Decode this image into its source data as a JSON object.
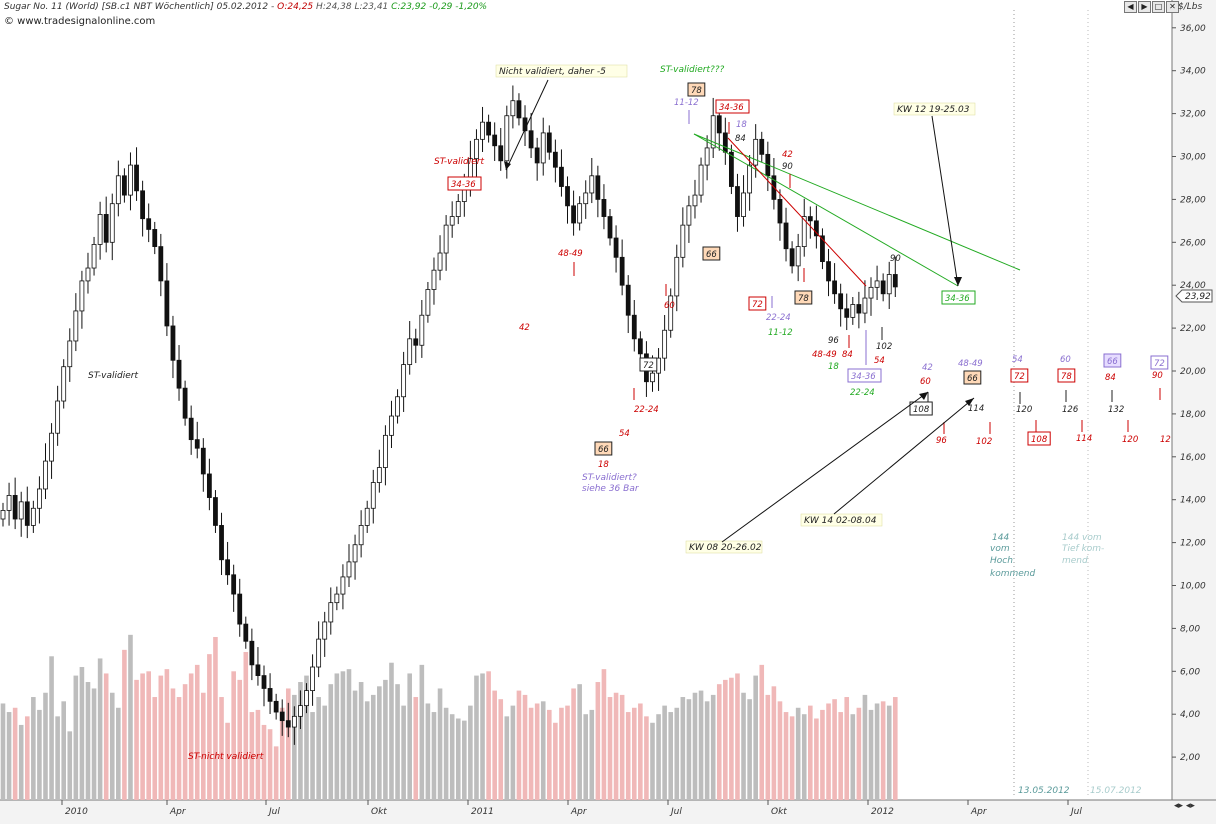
{
  "header": {
    "title": "Sugar No. 11 (World) [SB.c1 NBT Wöchentlich] 05.02.2012 -",
    "open": "O:24,25",
    "high_low": "H:24,38 L:23,41",
    "close": "C:23,92 -0,29 -1,20%",
    "website": "© www.tradesignalonline.com",
    "unit": "$/Lbs",
    "window_buttons": [
      "◀",
      "▶",
      "□",
      "✕"
    ],
    "scroll_buttons": "◂▸ ◂▸"
  },
  "colors": {
    "up_volume": "#bdbdbd",
    "down_volume": "#f0b8b8",
    "background": "#ffffff",
    "axis_panel": "#f3f3f3",
    "red_label": "#cc0000",
    "purple_label": "#8a6fd0",
    "green_label": "#22aa22",
    "accent_box": "#ffd9b8"
  },
  "chart_data": {
    "type": "candlestick",
    "title": "Sugar No. 11 (World) [SB.c1 NBT Wöchentlich]",
    "ylabel": "$/Lbs",
    "ylim": [
      0,
      37
    ],
    "y_ticks": [
      "2,00",
      "4,00",
      "6,00",
      "8,00",
      "10,00",
      "12,00",
      "14,00",
      "16,00",
      "18,00",
      "20,00",
      "22,00",
      "24,00",
      "26,00",
      "28,00",
      "30,00",
      "32,00",
      "34,00",
      "36,00"
    ],
    "x_ticks": [
      "2010",
      "Apr",
      "Jul",
      "Okt",
      "2011",
      "Apr",
      "Jul",
      "Okt",
      "2012",
      "Apr",
      "Jul"
    ],
    "last_price_label": "23,92",
    "closes": [
      13.5,
      14.2,
      13.1,
      13.9,
      12.8,
      13.6,
      14.5,
      15.8,
      17.1,
      18.6,
      20.2,
      21.4,
      22.8,
      24.2,
      24.8,
      25.9,
      27.3,
      26.0,
      27.8,
      29.1,
      28.2,
      29.6,
      28.4,
      27.1,
      26.6,
      25.8,
      24.2,
      22.1,
      20.5,
      19.2,
      17.8,
      16.8,
      16.4,
      15.2,
      14.1,
      12.8,
      11.2,
      10.5,
      9.6,
      8.2,
      7.4,
      6.3,
      5.8,
      5.2,
      4.6,
      4.1,
      3.7,
      3.4,
      3.9,
      4.4,
      5.1,
      6.2,
      7.5,
      8.3,
      9.2,
      9.6,
      10.4,
      11.1,
      11.9,
      12.8,
      13.6,
      14.8,
      15.5,
      17.0,
      17.9,
      18.8,
      20.3,
      21.5,
      21.2,
      22.6,
      23.8,
      24.7,
      25.5,
      26.8,
      27.2,
      27.9,
      28.6,
      29.9,
      30.8,
      31.6,
      31.0,
      30.5,
      29.8,
      31.9,
      32.6,
      31.8,
      31.2,
      30.4,
      29.7,
      31.1,
      30.2,
      29.5,
      28.6,
      27.7,
      26.9,
      27.8,
      28.3,
      29.1,
      28.0,
      27.2,
      26.2,
      25.3,
      24.0,
      22.6,
      21.5,
      20.8,
      19.5,
      19.9,
      20.6,
      21.9,
      23.5,
      25.3,
      26.8,
      27.7,
      28.2,
      29.6,
      30.4,
      31.9,
      31.1,
      30.2,
      28.6,
      27.2,
      28.3,
      29.6,
      30.8,
      30.1,
      29.1,
      28.0,
      26.9,
      25.7,
      24.9,
      25.8,
      27.2,
      27.0,
      26.3,
      25.1,
      24.2,
      23.6,
      22.9,
      22.5,
      23.1,
      22.7,
      23.4,
      23.9,
      24.2,
      23.6,
      24.5,
      23.92
    ],
    "highs_lows_note": "derived by script",
    "volume": [
      4.5,
      4.1,
      4.3,
      3.5,
      3.9,
      4.8,
      4.2,
      5.0,
      6.7,
      3.9,
      4.6,
      3.2,
      5.8,
      6.2,
      5.5,
      5.2,
      6.6,
      5.9,
      5.0,
      4.3,
      7.0,
      7.7,
      5.6,
      5.9,
      6.0,
      4.8,
      5.8,
      6.1,
      5.2,
      4.8,
      5.4,
      5.9,
      6.3,
      5.0,
      6.8,
      7.6,
      4.8,
      3.6,
      6.0,
      5.6,
      6.9,
      4.1,
      4.2,
      3.5,
      3.3,
      2.5,
      4.3,
      5.2,
      4.9,
      5.5,
      5.8,
      4.1,
      4.8,
      4.4,
      5.4,
      5.9,
      6.0,
      6.1,
      5.1,
      5.5,
      4.6,
      4.9,
      5.3,
      5.6,
      6.4,
      5.4,
      4.4,
      5.9,
      4.8,
      6.3,
      4.5,
      4.1,
      5.2,
      4.3,
      4.0,
      3.8,
      3.7,
      4.4,
      5.8,
      5.9,
      6.0,
      5.1,
      4.7,
      3.9,
      4.4,
      5.1,
      4.9,
      4.3,
      4.5,
      4.6,
      4.2,
      3.6,
      4.3,
      4.4,
      5.2,
      5.4,
      4.0,
      4.2,
      5.5,
      6.1,
      4.8,
      5.0,
      4.9,
      4.1,
      4.3,
      4.5,
      3.9,
      3.6,
      4.0,
      4.4,
      4.1,
      4.3,
      4.8,
      4.7,
      5.0,
      5.1,
      4.6,
      4.9,
      5.4,
      5.6,
      5.7,
      5.9,
      5.0,
      4.7,
      5.8,
      6.3,
      4.9,
      5.3,
      4.6,
      4.1,
      3.9,
      4.3,
      4.0,
      4.4,
      3.8,
      4.2,
      4.5,
      4.7,
      4.1,
      4.8,
      4.0,
      4.3,
      4.9,
      4.2,
      4.5,
      4.6,
      4.4,
      4.8
    ]
  },
  "annotations": {
    "notes": [
      {
        "text": "ST-validiert",
        "color": "dark"
      },
      {
        "text": "ST-nicht validiert",
        "color": "red"
      },
      {
        "text": "ST-validiert",
        "color": "red"
      },
      {
        "text": "Nicht validiert, daher -5",
        "color": "dark",
        "boxed": true
      },
      {
        "text": "ST-validiert???",
        "color": "green"
      },
      {
        "text": "ST-validiert?",
        "color": "purple"
      },
      {
        "text": "siehe 36 Bar",
        "color": "purple"
      },
      {
        "text": "KW 12  19-25.03",
        "color": "dark",
        "boxed": true
      },
      {
        "text": "KW 08 20-26.02",
        "color": "dark",
        "boxed": true
      },
      {
        "text": "KW 14  02-08.04",
        "color": "dark",
        "boxed": true
      },
      {
        "text": "144",
        "color": "teal"
      },
      {
        "text": "vom",
        "color": "teal"
      },
      {
        "text": "Hoch",
        "color": "teal"
      },
      {
        "text": "kommend",
        "color": "teal"
      },
      {
        "text": "144 vom",
        "color": "lightteal"
      },
      {
        "text": "Tief kom-",
        "color": "lightteal"
      },
      {
        "text": "mend",
        "color": "lightteal"
      },
      {
        "text": "13.05.2012",
        "color": "teal"
      },
      {
        "text": "15.07.2012",
        "color": "lightteal"
      }
    ],
    "numbers": [
      {
        "text": "42",
        "color": "red"
      },
      {
        "text": "48-49",
        "color": "red"
      },
      {
        "text": "60",
        "color": "red"
      },
      {
        "text": "54",
        "color": "red"
      },
      {
        "text": "22-24",
        "color": "red"
      },
      {
        "text": "18",
        "color": "red"
      },
      {
        "text": "11-12",
        "color": "purple"
      },
      {
        "text": "18",
        "color": "purple"
      },
      {
        "text": "84",
        "color": "dark"
      },
      {
        "text": "42",
        "color": "red"
      },
      {
        "text": "90",
        "color": "dark"
      },
      {
        "text": "90",
        "color": "dark"
      },
      {
        "text": "22-24",
        "color": "purple"
      },
      {
        "text": "11-12",
        "color": "green"
      },
      {
        "text": "96",
        "color": "dark"
      },
      {
        "text": "48-49",
        "color": "red"
      },
      {
        "text": "84",
        "color": "red"
      },
      {
        "text": "18",
        "color": "green"
      },
      {
        "text": "102",
        "color": "dark"
      },
      {
        "text": "54",
        "color": "red"
      },
      {
        "text": "22-24",
        "color": "green"
      },
      {
        "text": "42",
        "color": "purple"
      },
      {
        "text": "60",
        "color": "red"
      },
      {
        "text": "48-49",
        "color": "purple"
      },
      {
        "text": "54",
        "color": "purple"
      },
      {
        "text": "60",
        "color": "purple"
      },
      {
        "text": "114",
        "color": "dark"
      },
      {
        "text": "120",
        "color": "dark"
      },
      {
        "text": "126",
        "color": "dark"
      },
      {
        "text": "132",
        "color": "dark"
      },
      {
        "text": "84",
        "color": "red"
      },
      {
        "text": "90",
        "color": "red"
      },
      {
        "text": "96",
        "color": "red"
      },
      {
        "text": "102",
        "color": "red"
      },
      {
        "text": "114",
        "color": "red"
      },
      {
        "text": "120",
        "color": "red"
      },
      {
        "text": "12",
        "color": "red"
      }
    ],
    "boxes": [
      {
        "text": "34-36",
        "style": "red-outline"
      },
      {
        "text": "78",
        "style": "orange-fill"
      },
      {
        "text": "34-36",
        "style": "red-outline"
      },
      {
        "text": "66",
        "style": "orange-fill"
      },
      {
        "text": "72",
        "style": "red-outline"
      },
      {
        "text": "78",
        "style": "orange-fill"
      },
      {
        "text": "72",
        "style": "dark-outline"
      },
      {
        "text": "66",
        "style": "orange-fill"
      },
      {
        "text": "34-36",
        "style": "purple-outline"
      },
      {
        "text": "34-36",
        "style": "green-outline"
      },
      {
        "text": "108",
        "style": "dark-outline"
      },
      {
        "text": "66",
        "style": "orange-fill"
      },
      {
        "text": "72",
        "style": "red-outline"
      },
      {
        "text": "78",
        "style": "red-outline"
      },
      {
        "text": "108",
        "style": "red-outline"
      },
      {
        "text": "66",
        "style": "purple-fill"
      },
      {
        "text": "72",
        "style": "purple-outline"
      }
    ]
  }
}
